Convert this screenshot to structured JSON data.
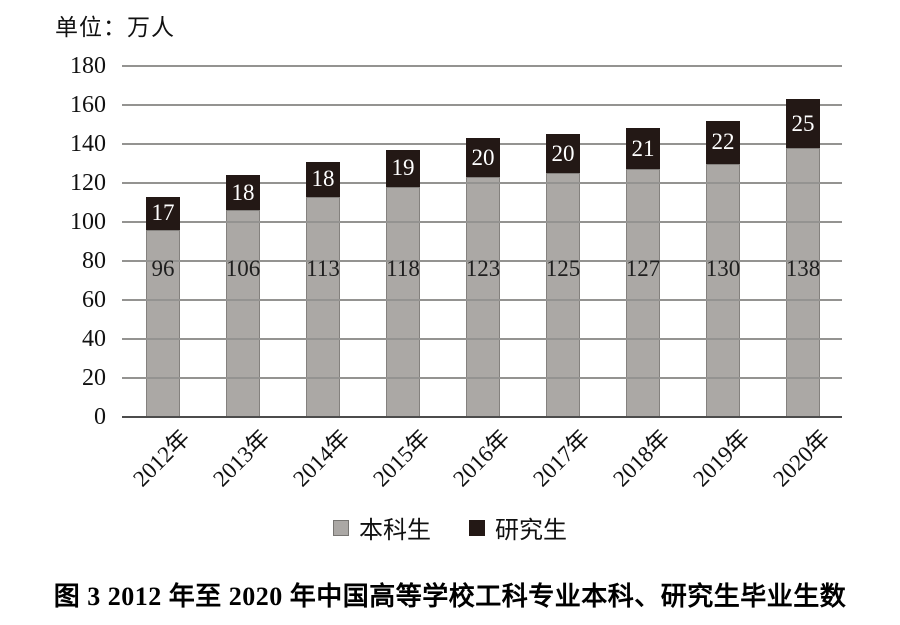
{
  "unit_label": "单位：万人",
  "caption": "图 3  2012 年至 2020 年中国高等学校工科专业本科、研究生毕业生数",
  "colors": {
    "background": "#ffffff",
    "undergraduate_bar": "#aba8a5",
    "graduate_bar": "#231815",
    "gridline": "#949391",
    "axis_line": "#4c4c4c",
    "undergrad_label_text": "#1e1e1e",
    "grad_label_text": "#ffffff"
  },
  "chart_data": {
    "type": "bar",
    "stacked": true,
    "title": "2012年至2020年中国高等学校工科专业本科、研究生毕业生数",
    "unit": "万人",
    "categories": [
      "2012年",
      "2013年",
      "2014年",
      "2015年",
      "2016年",
      "2017年",
      "2018年",
      "2019年",
      "2020年"
    ],
    "series": [
      {
        "name": "本科生",
        "color": "#aba8a5",
        "label_color": "#1e1e1e",
        "values": [
          96,
          106,
          113,
          118,
          123,
          125,
          127,
          130,
          138
        ]
      },
      {
        "name": "研究生",
        "color": "#231815",
        "label_color": "#ffffff",
        "values": [
          17,
          18,
          18,
          19,
          20,
          20,
          21,
          22,
          25
        ]
      }
    ],
    "totals": [
      113,
      124,
      131,
      137,
      143,
      145,
      148,
      152,
      163
    ],
    "ylim": [
      0,
      180
    ],
    "yticks": [
      0,
      20,
      40,
      60,
      80,
      100,
      120,
      140,
      160,
      180
    ],
    "grid": true,
    "grid_over_undergrad_bars": true,
    "legend_position": "bottom"
  }
}
